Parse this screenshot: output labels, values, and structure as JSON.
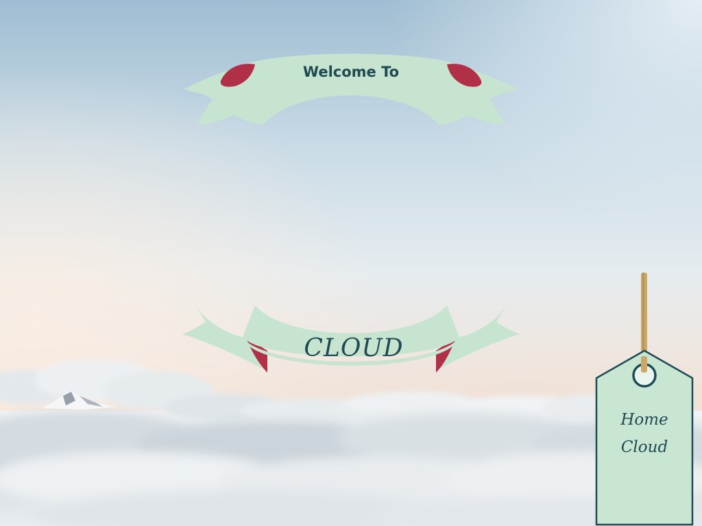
{
  "banner_top": {
    "text": "Welcome To"
  },
  "banner_bottom": {
    "text": "CLOUD"
  },
  "tag": {
    "line1": "Home",
    "line2": "Cloud"
  },
  "colors": {
    "ribbon": "#c6e4cf",
    "ribbon_fold": "#b03048",
    "text": "#1f4a52",
    "tag_fill": "#c8e6d2",
    "tag_border": "#1e4a55",
    "string": "#c9a86a",
    "sky_top": "#a9c6d8",
    "sky_mid": "#e4ebef",
    "horizon": "#f2e4d8"
  }
}
